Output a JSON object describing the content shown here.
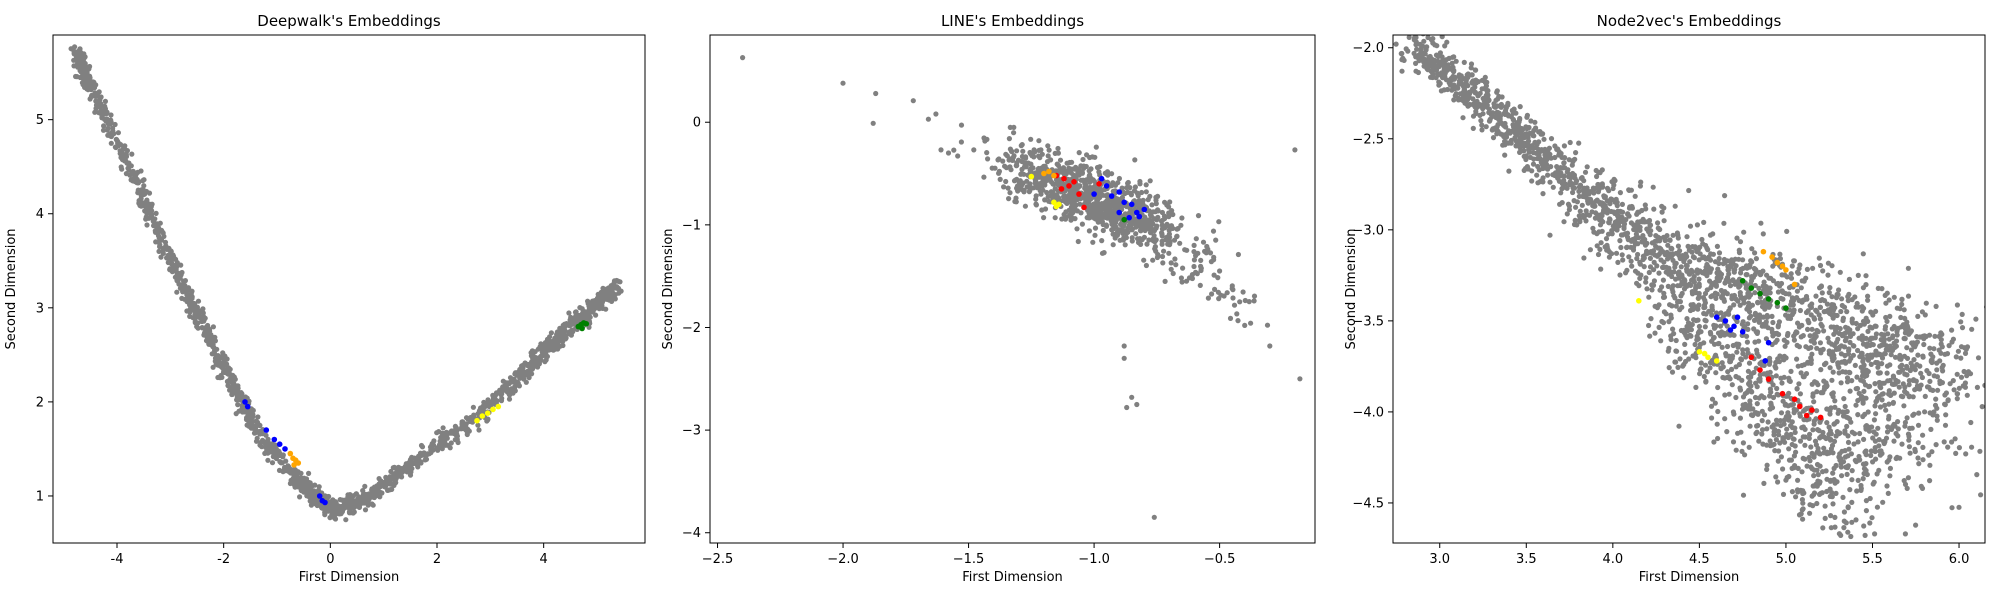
{
  "chart_data": [
    {
      "type": "scatter",
      "title": "Deepwalk's Embeddings",
      "xlabel": "First Dimension",
      "ylabel": "Second Dimension",
      "xlim": [
        -5.2,
        5.9
      ],
      "ylim": [
        0.5,
        5.9
      ],
      "xticks": [
        -4,
        -2,
        0,
        2,
        4
      ],
      "yticks": [
        1,
        2,
        3,
        4,
        5
      ],
      "ytick_labels": [
        "1",
        "2",
        "3",
        "4",
        "5"
      ],
      "background_series": {
        "color": "#808080",
        "description_points": [
          [
            -4.75,
            5.7
          ],
          [
            -4.6,
            5.5
          ],
          [
            -4.2,
            5.0
          ],
          [
            -3.6,
            4.3
          ],
          [
            -3.0,
            3.5
          ],
          [
            -2.4,
            2.8
          ],
          [
            -1.8,
            2.15
          ],
          [
            -1.2,
            1.55
          ],
          [
            -0.6,
            1.15
          ],
          [
            -0.2,
            0.95
          ],
          [
            0.1,
            0.85
          ],
          [
            0.6,
            0.95
          ],
          [
            1.2,
            1.2
          ],
          [
            2.0,
            1.55
          ],
          [
            2.8,
            1.85
          ],
          [
            3.6,
            2.3
          ],
          [
            4.2,
            2.65
          ],
          [
            4.8,
            2.95
          ],
          [
            5.4,
            3.25
          ]
        ]
      },
      "series": [
        {
          "color": "#0000ff",
          "points": [
            [
              -1.6,
              2.0
            ],
            [
              -1.55,
              1.95
            ],
            [
              -1.2,
              1.7
            ],
            [
              -1.05,
              1.6
            ],
            [
              -0.95,
              1.55
            ],
            [
              -0.85,
              1.5
            ],
            [
              -0.2,
              1.0
            ],
            [
              -0.15,
              0.95
            ],
            [
              -0.1,
              0.93
            ]
          ]
        },
        {
          "color": "#ffa500",
          "points": [
            [
              -0.75,
              1.45
            ],
            [
              -0.7,
              1.4
            ],
            [
              -0.65,
              1.38
            ],
            [
              -0.6,
              1.35
            ],
            [
              -0.68,
              1.33
            ]
          ]
        },
        {
          "color": "#ffff00",
          "points": [
            [
              2.75,
              1.8
            ],
            [
              2.85,
              1.85
            ],
            [
              2.95,
              1.88
            ],
            [
              3.05,
              1.92
            ],
            [
              3.15,
              1.95
            ]
          ]
        },
        {
          "color": "#008000",
          "points": [
            [
              4.65,
              2.8
            ],
            [
              4.7,
              2.82
            ],
            [
              4.75,
              2.84
            ],
            [
              4.8,
              2.83
            ],
            [
              4.72,
              2.78
            ]
          ]
        }
      ]
    },
    {
      "type": "scatter",
      "title": "LINE's Embeddings",
      "xlabel": "First Dimension",
      "ylabel": "Second Dimension",
      "xlim": [
        -2.53,
        -0.12
      ],
      "ylim": [
        -4.1,
        0.85
      ],
      "xticks": [
        -2.5,
        -2.0,
        -1.5,
        -1.0,
        -0.5
      ],
      "xtick_labels": [
        "−2.5",
        "−2.0",
        "−1.5",
        "−1.0",
        "−0.5"
      ],
      "yticks": [
        -4,
        -3,
        -2,
        -1,
        0
      ],
      "ytick_labels": [
        "−4",
        "−3",
        "−2",
        "−1",
        "0"
      ],
      "background_series": {
        "color": "#808080",
        "outliers": [
          [
            -2.4,
            0.63
          ],
          [
            -2.0,
            0.38
          ],
          [
            -1.87,
            0.28
          ],
          [
            -1.88,
            -0.01
          ],
          [
            -1.72,
            0.21
          ],
          [
            -1.66,
            0.03
          ],
          [
            -1.63,
            0.08
          ],
          [
            -1.61,
            -0.27
          ],
          [
            -1.58,
            -0.3
          ],
          [
            -0.2,
            -0.27
          ],
          [
            -0.18,
            -2.5
          ],
          [
            -0.3,
            -2.18
          ],
          [
            -0.4,
            -1.98
          ],
          [
            -0.88,
            -2.18
          ],
          [
            -0.88,
            -2.3
          ],
          [
            -0.85,
            -2.68
          ],
          [
            -0.87,
            -2.78
          ],
          [
            -0.83,
            -2.75
          ],
          [
            -0.76,
            -3.85
          ],
          [
            -0.5,
            -1.45
          ],
          [
            -0.45,
            -1.62
          ],
          [
            -0.42,
            -1.75
          ]
        ],
        "cluster_center": [
          -1.0,
          -0.75
        ],
        "cluster_spread": [
          0.28,
          0.28
        ]
      },
      "series": [
        {
          "color": "#ff0000",
          "points": [
            [
              -1.15,
              -0.52
            ],
            [
              -1.12,
              -0.55
            ],
            [
              -1.1,
              -0.62
            ],
            [
              -1.13,
              -0.65
            ],
            [
              -1.06,
              -0.7
            ],
            [
              -1.04,
              -0.83
            ],
            [
              -1.08,
              -0.58
            ],
            [
              -0.98,
              -0.6
            ]
          ]
        },
        {
          "color": "#ffa500",
          "points": [
            [
              -1.18,
              -0.48
            ],
            [
              -1.16,
              -0.52
            ],
            [
              -1.2,
              -0.5
            ]
          ]
        },
        {
          "color": "#ffff00",
          "points": [
            [
              -1.25,
              -0.53
            ],
            [
              -1.16,
              -0.78
            ],
            [
              -1.15,
              -0.82
            ],
            [
              -1.14,
              -0.8
            ]
          ]
        },
        {
          "color": "#0000ff",
          "points": [
            [
              -0.97,
              -0.55
            ],
            [
              -0.95,
              -0.62
            ],
            [
              -0.93,
              -0.72
            ],
            [
              -0.9,
              -0.68
            ],
            [
              -0.88,
              -0.78
            ],
            [
              -0.85,
              -0.8
            ],
            [
              -0.83,
              -0.88
            ],
            [
              -0.82,
              -0.92
            ],
            [
              -0.86,
              -0.93
            ],
            [
              -0.8,
              -0.85
            ],
            [
              -0.9,
              -0.88
            ],
            [
              -1.0,
              -0.7
            ]
          ]
        },
        {
          "color": "#008000",
          "points": [
            [
              -0.88,
              -0.95
            ]
          ]
        }
      ]
    },
    {
      "type": "scatter",
      "title": "Node2vec's Embeddings",
      "xlabel": "First Dimension",
      "ylabel": "Second Dimension",
      "xlim": [
        2.73,
        6.15
      ],
      "ylim": [
        -4.72,
        -1.93
      ],
      "xticks": [
        3.0,
        3.5,
        4.0,
        4.5,
        5.0,
        5.5,
        6.0
      ],
      "xtick_labels": [
        "3.0",
        "3.5",
        "4.0",
        "4.5",
        "5.0",
        "5.5",
        "6.0"
      ],
      "yticks": [
        -4.5,
        -4.0,
        -3.5,
        -3.0,
        -2.5,
        -2.0
      ],
      "ytick_labels": [
        "−4.5",
        "−4.0",
        "−3.5",
        "−3.0",
        "−2.5",
        "−2.0"
      ],
      "background_series": {
        "color": "#808080",
        "spine": [
          [
            2.85,
            -2.0
          ],
          [
            3.2,
            -2.25
          ],
          [
            3.6,
            -2.6
          ],
          [
            4.0,
            -2.95
          ],
          [
            4.4,
            -3.2
          ],
          [
            4.8,
            -3.35
          ],
          [
            5.2,
            -3.5
          ],
          [
            5.6,
            -3.65
          ],
          [
            6.0,
            -3.8
          ]
        ],
        "lower_branch": [
          [
            4.4,
            -3.45
          ],
          [
            4.7,
            -3.75
          ],
          [
            5.0,
            -4.0
          ],
          [
            5.2,
            -4.25
          ],
          [
            5.4,
            -4.5
          ]
        ],
        "right_tail": [
          [
            5.3,
            -3.85
          ],
          [
            5.5,
            -4.0
          ],
          [
            5.7,
            -4.15
          ],
          [
            5.8,
            -4.22
          ]
        ],
        "outliers": [
          [
            5.69,
            -4.67
          ],
          [
            3.56,
            -2.7
          ]
        ]
      },
      "series": [
        {
          "color": "#ffa500",
          "points": [
            [
              4.87,
              -3.12
            ],
            [
              4.92,
              -3.15
            ],
            [
              4.95,
              -3.18
            ],
            [
              4.98,
              -3.2
            ],
            [
              5.0,
              -3.22
            ],
            [
              5.05,
              -3.3
            ]
          ]
        },
        {
          "color": "#008000",
          "points": [
            [
              4.75,
              -3.28
            ],
            [
              4.8,
              -3.32
            ],
            [
              4.85,
              -3.35
            ],
            [
              4.9,
              -3.38
            ],
            [
              4.95,
              -3.4
            ],
            [
              5.0,
              -3.43
            ]
          ]
        },
        {
          "color": "#0000ff",
          "points": [
            [
              4.6,
              -3.48
            ],
            [
              4.65,
              -3.5
            ],
            [
              4.7,
              -3.53
            ],
            [
              4.75,
              -3.56
            ],
            [
              4.68,
              -3.55
            ],
            [
              4.72,
              -3.48
            ],
            [
              4.9,
              -3.62
            ],
            [
              4.88,
              -3.72
            ]
          ]
        },
        {
          "color": "#ffff00",
          "points": [
            [
              4.15,
              -3.39
            ],
            [
              4.5,
              -3.67
            ],
            [
              4.55,
              -3.7
            ],
            [
              4.6,
              -3.72
            ],
            [
              4.53,
              -3.68
            ]
          ]
        },
        {
          "color": "#ff0000",
          "points": [
            [
              4.85,
              -3.77
            ],
            [
              4.9,
              -3.82
            ],
            [
              4.98,
              -3.9
            ],
            [
              5.05,
              -3.93
            ],
            [
              5.08,
              -3.97
            ],
            [
              5.12,
              -4.02
            ],
            [
              5.15,
              -3.99
            ],
            [
              5.2,
              -4.03
            ],
            [
              4.8,
              -3.7
            ]
          ]
        }
      ]
    }
  ]
}
